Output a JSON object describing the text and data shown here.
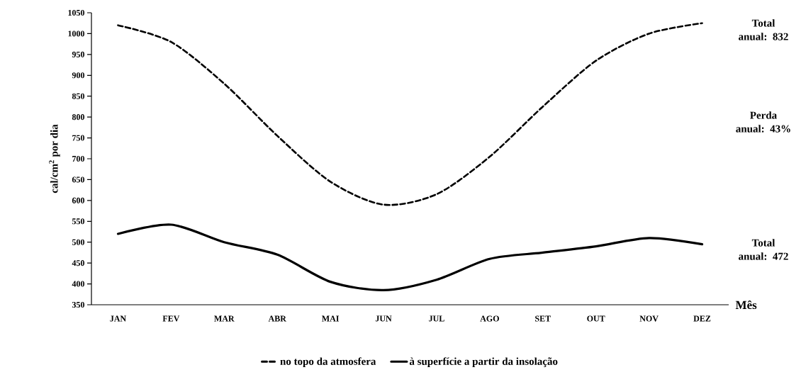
{
  "chart_data": {
    "type": "line",
    "categories": [
      "JAN",
      "FEV",
      "MAR",
      "ABR",
      "MAI",
      "JUN",
      "JUL",
      "AGO",
      "SET",
      "OUT",
      "NOV",
      "DEZ"
    ],
    "series": [
      {
        "name": "no topo da atmosfera",
        "color": "#000000",
        "line_style": "dashed",
        "values": [
          1020,
          980,
          880,
          755,
          645,
          590,
          615,
          705,
          825,
          935,
          1000,
          1025
        ]
      },
      {
        "name": "à superfície a partir da insolação",
        "color": "#000000",
        "line_style": "solid",
        "values": [
          520,
          542,
          500,
          470,
          405,
          385,
          410,
          460,
          475,
          490,
          510,
          495
        ]
      }
    ],
    "xlabel": "Mês",
    "ylabel": "cal/cm$^{2}$ por dia",
    "ylim": [
      350,
      1050
    ],
    "yticks": [
      350,
      400,
      450,
      500,
      550,
      600,
      650,
      700,
      750,
      800,
      850,
      900,
      950,
      1000,
      1050
    ],
    "annotations": [
      "Total anual: 832",
      "Perda anual: 43%",
      "Total anual: 472"
    ],
    "grid": false,
    "legend": "bottom",
    "marker": "none"
  }
}
